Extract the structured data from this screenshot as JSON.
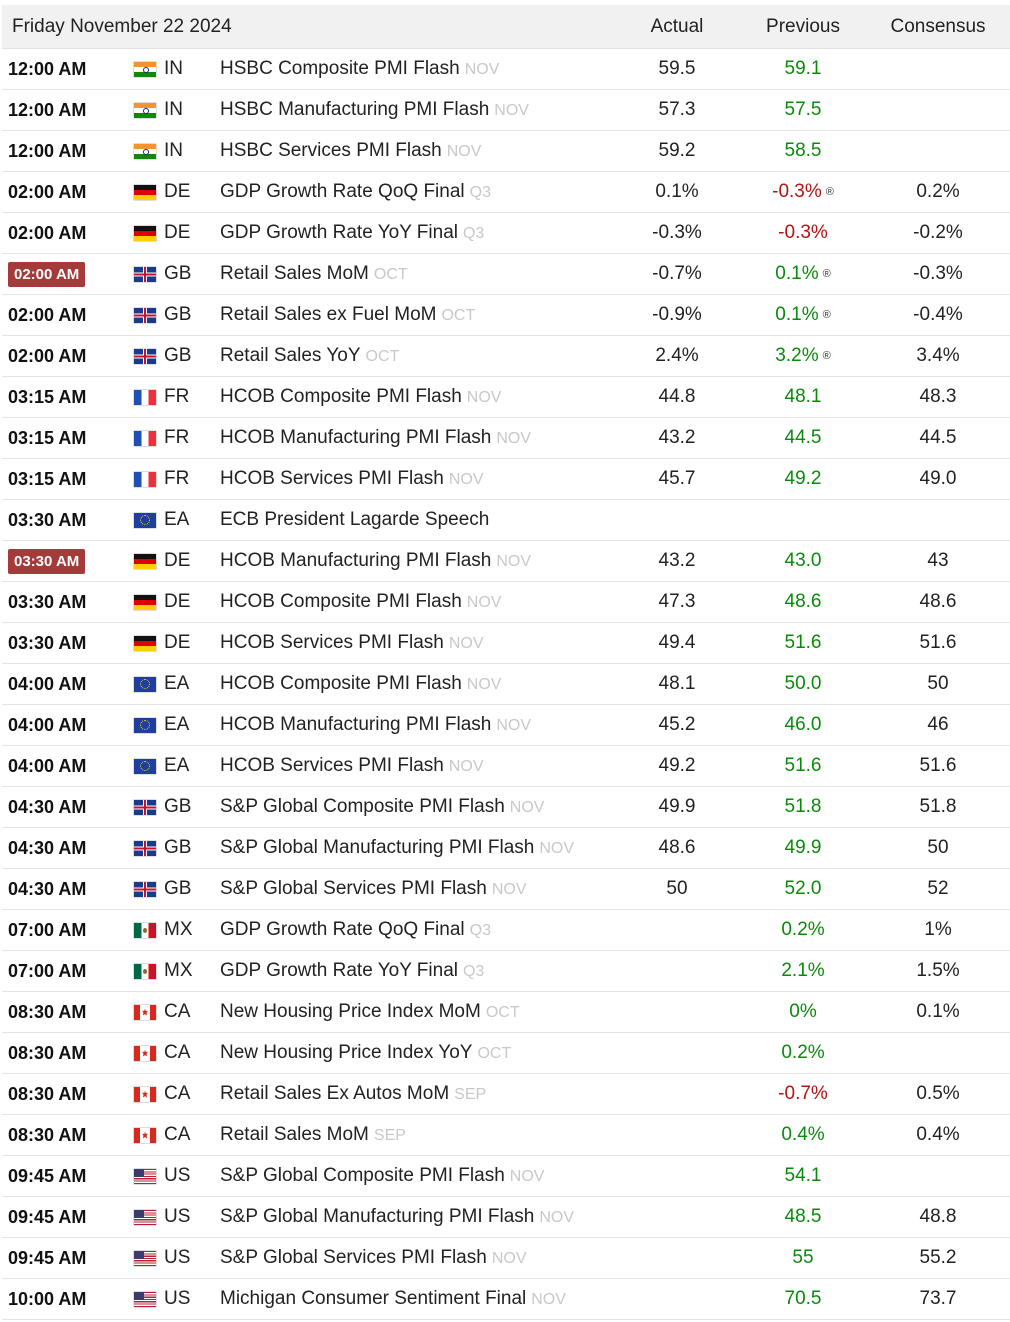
{
  "header": {
    "date": "Friday November 22 2024",
    "actual": "Actual",
    "previous": "Previous",
    "consensus": "Consensus"
  },
  "colors": {
    "highlight": "#a43a3a",
    "green": "#0a8a0a",
    "red": "#b51212"
  },
  "rows": [
    {
      "time": "12:00 AM",
      "highlight": false,
      "country": "IN",
      "event": "HSBC Composite PMI Flash",
      "ref": "NOV",
      "actual": "59.5",
      "previous": "59.1",
      "prevColor": "green",
      "revised": false,
      "consensus": ""
    },
    {
      "time": "12:00 AM",
      "highlight": false,
      "country": "IN",
      "event": "HSBC Manufacturing PMI Flash",
      "ref": "NOV",
      "actual": "57.3",
      "previous": "57.5",
      "prevColor": "green",
      "revised": false,
      "consensus": ""
    },
    {
      "time": "12:00 AM",
      "highlight": false,
      "country": "IN",
      "event": "HSBC Services PMI Flash",
      "ref": "NOV",
      "actual": "59.2",
      "previous": "58.5",
      "prevColor": "green",
      "revised": false,
      "consensus": ""
    },
    {
      "time": "02:00 AM",
      "highlight": false,
      "country": "DE",
      "event": "GDP Growth Rate QoQ Final",
      "ref": "Q3",
      "actual": "0.1%",
      "previous": "-0.3%",
      "prevColor": "red",
      "revised": true,
      "consensus": "0.2%"
    },
    {
      "time": "02:00 AM",
      "highlight": false,
      "country": "DE",
      "event": "GDP Growth Rate YoY Final",
      "ref": "Q3",
      "actual": "-0.3%",
      "previous": "-0.3%",
      "prevColor": "red",
      "revised": false,
      "consensus": "-0.2%"
    },
    {
      "time": "02:00 AM",
      "highlight": true,
      "country": "GB",
      "event": "Retail Sales MoM",
      "ref": "OCT",
      "actual": "-0.7%",
      "previous": "0.1%",
      "prevColor": "green",
      "revised": true,
      "consensus": "-0.3%"
    },
    {
      "time": "02:00 AM",
      "highlight": false,
      "country": "GB",
      "event": "Retail Sales ex Fuel MoM",
      "ref": "OCT",
      "actual": "-0.9%",
      "previous": "0.1%",
      "prevColor": "green",
      "revised": true,
      "consensus": "-0.4%"
    },
    {
      "time": "02:00 AM",
      "highlight": false,
      "country": "GB",
      "event": "Retail Sales YoY",
      "ref": "OCT",
      "actual": "2.4%",
      "previous": "3.2%",
      "prevColor": "green",
      "revised": true,
      "consensus": "3.4%"
    },
    {
      "time": "03:15 AM",
      "highlight": false,
      "country": "FR",
      "event": "HCOB Composite PMI Flash",
      "ref": "NOV",
      "actual": "44.8",
      "previous": "48.1",
      "prevColor": "green",
      "revised": false,
      "consensus": "48.3"
    },
    {
      "time": "03:15 AM",
      "highlight": false,
      "country": "FR",
      "event": "HCOB Manufacturing PMI Flash",
      "ref": "NOV",
      "actual": "43.2",
      "previous": "44.5",
      "prevColor": "green",
      "revised": false,
      "consensus": "44.5"
    },
    {
      "time": "03:15 AM",
      "highlight": false,
      "country": "FR",
      "event": "HCOB Services PMI Flash",
      "ref": "NOV",
      "actual": "45.7",
      "previous": "49.2",
      "prevColor": "green",
      "revised": false,
      "consensus": "49.0"
    },
    {
      "time": "03:30 AM",
      "highlight": false,
      "country": "EA",
      "event": "ECB President Lagarde Speech",
      "ref": "",
      "actual": "",
      "previous": "",
      "prevColor": "green",
      "revised": false,
      "consensus": ""
    },
    {
      "time": "03:30 AM",
      "highlight": true,
      "country": "DE",
      "event": "HCOB Manufacturing PMI Flash",
      "ref": "NOV",
      "actual": "43.2",
      "previous": "43.0",
      "prevColor": "green",
      "revised": false,
      "consensus": "43"
    },
    {
      "time": "03:30 AM",
      "highlight": false,
      "country": "DE",
      "event": "HCOB Composite PMI Flash",
      "ref": "NOV",
      "actual": "47.3",
      "previous": "48.6",
      "prevColor": "green",
      "revised": false,
      "consensus": "48.6"
    },
    {
      "time": "03:30 AM",
      "highlight": false,
      "country": "DE",
      "event": "HCOB Services PMI Flash",
      "ref": "NOV",
      "actual": "49.4",
      "previous": "51.6",
      "prevColor": "green",
      "revised": false,
      "consensus": "51.6"
    },
    {
      "time": "04:00 AM",
      "highlight": false,
      "country": "EA",
      "event": "HCOB Composite PMI Flash",
      "ref": "NOV",
      "actual": "48.1",
      "previous": "50.0",
      "prevColor": "green",
      "revised": false,
      "consensus": "50"
    },
    {
      "time": "04:00 AM",
      "highlight": false,
      "country": "EA",
      "event": "HCOB Manufacturing PMI Flash",
      "ref": "NOV",
      "actual": "45.2",
      "previous": "46.0",
      "prevColor": "green",
      "revised": false,
      "consensus": "46"
    },
    {
      "time": "04:00 AM",
      "highlight": false,
      "country": "EA",
      "event": "HCOB Services PMI Flash",
      "ref": "NOV",
      "actual": "49.2",
      "previous": "51.6",
      "prevColor": "green",
      "revised": false,
      "consensus": "51.6"
    },
    {
      "time": "04:30 AM",
      "highlight": false,
      "country": "GB",
      "event": "S&P Global Composite PMI Flash",
      "ref": "NOV",
      "actual": "49.9",
      "previous": "51.8",
      "prevColor": "green",
      "revised": false,
      "consensus": "51.8"
    },
    {
      "time": "04:30 AM",
      "highlight": false,
      "country": "GB",
      "event": "S&P Global Manufacturing PMI Flash",
      "ref": "NOV",
      "actual": "48.6",
      "previous": "49.9",
      "prevColor": "green",
      "revised": false,
      "consensus": "50"
    },
    {
      "time": "04:30 AM",
      "highlight": false,
      "country": "GB",
      "event": "S&P Global Services PMI Flash",
      "ref": "NOV",
      "actual": "50",
      "previous": "52.0",
      "prevColor": "green",
      "revised": false,
      "consensus": "52"
    },
    {
      "time": "07:00 AM",
      "highlight": false,
      "country": "MX",
      "event": "GDP Growth Rate QoQ Final",
      "ref": "Q3",
      "actual": "",
      "previous": "0.2%",
      "prevColor": "green",
      "revised": false,
      "consensus": "1%"
    },
    {
      "time": "07:00 AM",
      "highlight": false,
      "country": "MX",
      "event": "GDP Growth Rate YoY Final",
      "ref": "Q3",
      "actual": "",
      "previous": "2.1%",
      "prevColor": "green",
      "revised": false,
      "consensus": "1.5%"
    },
    {
      "time": "08:30 AM",
      "highlight": false,
      "country": "CA",
      "event": "New Housing Price Index MoM",
      "ref": "OCT",
      "actual": "",
      "previous": "0%",
      "prevColor": "green",
      "revised": false,
      "consensus": "0.1%"
    },
    {
      "time": "08:30 AM",
      "highlight": false,
      "country": "CA",
      "event": "New Housing Price Index YoY",
      "ref": "OCT",
      "actual": "",
      "previous": "0.2%",
      "prevColor": "green",
      "revised": false,
      "consensus": ""
    },
    {
      "time": "08:30 AM",
      "highlight": false,
      "country": "CA",
      "event": "Retail Sales Ex Autos MoM",
      "ref": "SEP",
      "actual": "",
      "previous": "-0.7%",
      "prevColor": "red",
      "revised": false,
      "consensus": "0.5%"
    },
    {
      "time": "08:30 AM",
      "highlight": false,
      "country": "CA",
      "event": "Retail Sales MoM",
      "ref": "SEP",
      "actual": "",
      "previous": "0.4%",
      "prevColor": "green",
      "revised": false,
      "consensus": "0.4%"
    },
    {
      "time": "09:45 AM",
      "highlight": false,
      "country": "US",
      "event": "S&P Global Composite PMI Flash",
      "ref": "NOV",
      "actual": "",
      "previous": "54.1",
      "prevColor": "green",
      "revised": false,
      "consensus": ""
    },
    {
      "time": "09:45 AM",
      "highlight": false,
      "country": "US",
      "event": "S&P Global Manufacturing PMI Flash",
      "ref": "NOV",
      "actual": "",
      "previous": "48.5",
      "prevColor": "green",
      "revised": false,
      "consensus": "48.8"
    },
    {
      "time": "09:45 AM",
      "highlight": false,
      "country": "US",
      "event": "S&P Global Services PMI Flash",
      "ref": "NOV",
      "actual": "",
      "previous": "55",
      "prevColor": "green",
      "revised": false,
      "consensus": "55.2"
    },
    {
      "time": "10:00 AM",
      "highlight": false,
      "country": "US",
      "event": "Michigan Consumer Sentiment Final",
      "ref": "NOV",
      "actual": "",
      "previous": "70.5",
      "prevColor": "green",
      "revised": false,
      "consensus": "73.7"
    }
  ]
}
